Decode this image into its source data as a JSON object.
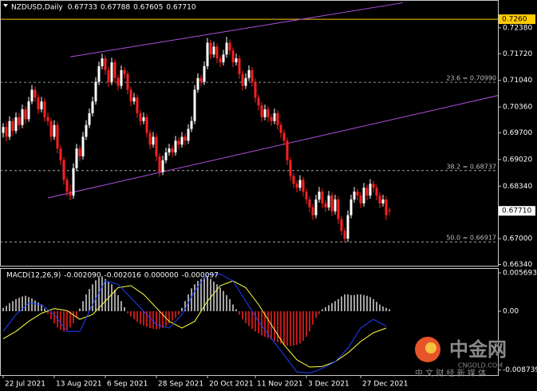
{
  "chart_data": {
    "type": "candlestick",
    "title": "NZDUSD,Daily",
    "header_values": [
      0.67733,
      0.67788,
      0.67605,
      {
        "value": 0.6771,
        "label": "0.67710"
      }
    ],
    "up_color": "#ffffff",
    "down_color": "#ff2020",
    "xlim": [
      -1,
      155
    ],
    "xticks": [
      {
        "value": 0,
        "label": "22 Jul 2021"
      },
      {
        "value": 16,
        "label": "13 Aug 2021"
      },
      {
        "value": 32,
        "label": "6 Sep 2021"
      },
      {
        "value": 48,
        "label": "28 Sep 2021"
      },
      {
        "value": 64,
        "label": "20 Oct 2021"
      },
      {
        "value": 79,
        "label": "11 Nov 2021"
      },
      {
        "value": 95,
        "label": "3 Dec 2021"
      },
      {
        "value": 112,
        "label": "27 Dec 2021"
      }
    ],
    "ylim": [
      0.6631,
      0.7309
    ],
    "yticks": [
      {
        "value": 0.7238,
        "label": "0.72380"
      },
      {
        "value": 0.7172,
        "label": "0.71720"
      },
      {
        "value": 0.7104,
        "label": "0.71040"
      },
      {
        "value": 0.7036,
        "label": "0.70360"
      },
      {
        "value": 0.697,
        "label": "0.69700"
      },
      {
        "value": 0.6902,
        "label": "0.69020"
      },
      {
        "value": 0.6834,
        "label": "0.68340"
      },
      {
        "value": 0.67,
        "label": "0.67000"
      },
      {
        "value": 0.6634,
        "label": "0.66340"
      }
    ],
    "hline": {
      "value": 0.726,
      "label": "0.7260",
      "color": "#ffcc00"
    },
    "fib_color": "#bdbdbd",
    "fib_levels": [
      {
        "value": 0.7099,
        "label": "23.6 = 0.70990"
      },
      {
        "value": 0.68737,
        "label": "38.2 = 0.68737"
      },
      {
        "value": 0.66917,
        "label": "50.0 = 0.66917"
      }
    ],
    "last_price": {
      "value": 0.6771,
      "label": "0.67710"
    },
    "trendline_color": "#b050e0",
    "trendlines": [
      {
        "x": [
          21,
          125.25
        ],
        "y": [
          0.7164,
          0.7302
        ]
      },
      {
        "x": [
          14,
          167.25
        ],
        "y": [
          0.6804,
          0.7088
        ]
      }
    ],
    "candles": [
      [
        0.697,
        0.6995,
        0.6958,
        0.6985
      ],
      [
        0.6985,
        0.6997,
        0.6948,
        0.696
      ],
      [
        0.696,
        0.7012,
        0.6952,
        0.7
      ],
      [
        0.7,
        0.7008,
        0.6963,
        0.6975
      ],
      [
        0.6975,
        0.7022,
        0.6968,
        0.701
      ],
      [
        0.701,
        0.7021,
        0.6978,
        0.699
      ],
      [
        0.699,
        0.7042,
        0.6982,
        0.703
      ],
      [
        0.703,
        0.7038,
        0.6993,
        0.7005
      ],
      [
        0.7005,
        0.7062,
        0.6998,
        0.705
      ],
      [
        0.705,
        0.7092,
        0.7043,
        0.708
      ],
      [
        0.708,
        0.7088,
        0.7048,
        0.706
      ],
      [
        0.706,
        0.7068,
        0.7018,
        0.703
      ],
      [
        0.703,
        0.7062,
        0.7022,
        0.705
      ],
      [
        0.705,
        0.7058,
        0.6998,
        0.701
      ],
      [
        0.701,
        0.7022,
        0.6988,
        0.7
      ],
      [
        0.7,
        0.7008,
        0.6948,
        0.696
      ],
      [
        0.696,
        0.7002,
        0.6952,
        0.699
      ],
      [
        0.699,
        0.6998,
        0.6918,
        0.693
      ],
      [
        0.693,
        0.6938,
        0.6888,
        0.69
      ],
      [
        0.69,
        0.6908,
        0.6838,
        0.685
      ],
      [
        0.685,
        0.6858,
        0.6808,
        0.682
      ],
      [
        0.682,
        0.6838,
        0.6798,
        0.681
      ],
      [
        0.681,
        0.6892,
        0.6802,
        0.688
      ],
      [
        0.688,
        0.6942,
        0.6872,
        0.693
      ],
      [
        0.693,
        0.6938,
        0.6898,
        0.691
      ],
      [
        0.691,
        0.6972,
        0.6902,
        0.696
      ],
      [
        0.696,
        0.7002,
        0.6952,
        0.699
      ],
      [
        0.699,
        0.7032,
        0.6982,
        0.702
      ],
      [
        0.702,
        0.7062,
        0.7012,
        0.705
      ],
      [
        0.705,
        0.7112,
        0.7042,
        0.71
      ],
      [
        0.71,
        0.7152,
        0.7092,
        0.714
      ],
      [
        0.714,
        0.7172,
        0.7132,
        0.716
      ],
      [
        0.716,
        0.7168,
        0.7118,
        0.713
      ],
      [
        0.713,
        0.7138,
        0.7088,
        0.71
      ],
      [
        0.71,
        0.7162,
        0.7092,
        0.715
      ],
      [
        0.715,
        0.7158,
        0.7098,
        0.711
      ],
      [
        0.711,
        0.7118,
        0.7078,
        0.709
      ],
      [
        0.709,
        0.7142,
        0.7082,
        0.713
      ],
      [
        0.713,
        0.7138,
        0.7108,
        0.712
      ],
      [
        0.712,
        0.7128,
        0.7068,
        0.708
      ],
      [
        0.708,
        0.7088,
        0.7038,
        0.705
      ],
      [
        0.705,
        0.7072,
        0.7042,
        0.706
      ],
      [
        0.706,
        0.7068,
        0.7008,
        0.702
      ],
      [
        0.702,
        0.7028,
        0.6988,
        0.7
      ],
      [
        0.7,
        0.7022,
        0.6992,
        0.701
      ],
      [
        0.701,
        0.7018,
        0.6958,
        0.697
      ],
      [
        0.697,
        0.6978,
        0.6928,
        0.694
      ],
      [
        0.694,
        0.6972,
        0.6932,
        0.696
      ],
      [
        0.696,
        0.6968,
        0.6898,
        0.691
      ],
      [
        0.691,
        0.6918,
        0.6858,
        0.687
      ],
      [
        0.687,
        0.6912,
        0.6862,
        0.69
      ],
      [
        0.69,
        0.6932,
        0.6892,
        0.692
      ],
      [
        0.692,
        0.6942,
        0.6912,
        0.693
      ],
      [
        0.693,
        0.6938,
        0.6908,
        0.692
      ],
      [
        0.692,
        0.6962,
        0.6912,
        0.695
      ],
      [
        0.695,
        0.6958,
        0.6928,
        0.694
      ],
      [
        0.694,
        0.6972,
        0.6932,
        0.696
      ],
      [
        0.696,
        0.6968,
        0.6938,
        0.695
      ],
      [
        0.695,
        0.6992,
        0.6942,
        0.698
      ],
      [
        0.698,
        0.7012,
        0.6972,
        0.7
      ],
      [
        0.7,
        0.7092,
        0.6992,
        0.708
      ],
      [
        0.708,
        0.7122,
        0.7072,
        0.711
      ],
      [
        0.711,
        0.7118,
        0.7088,
        0.71
      ],
      [
        0.71,
        0.7152,
        0.7092,
        0.714
      ],
      [
        0.714,
        0.7212,
        0.7132,
        0.72
      ],
      [
        0.72,
        0.7208,
        0.7158,
        0.717
      ],
      [
        0.717,
        0.7202,
        0.7162,
        0.719
      ],
      [
        0.719,
        0.7198,
        0.7148,
        0.716
      ],
      [
        0.716,
        0.7168,
        0.7138,
        0.715
      ],
      [
        0.715,
        0.7182,
        0.7142,
        0.717
      ],
      [
        0.717,
        0.7215,
        0.7162,
        0.72
      ],
      [
        0.72,
        0.7208,
        0.7168,
        0.718
      ],
      [
        0.718,
        0.7188,
        0.7138,
        0.715
      ],
      [
        0.715,
        0.7172,
        0.7142,
        0.716
      ],
      [
        0.716,
        0.7168,
        0.7108,
        0.712
      ],
      [
        0.712,
        0.7128,
        0.7078,
        0.709
      ],
      [
        0.709,
        0.7122,
        0.7082,
        0.711
      ],
      [
        0.711,
        0.7142,
        0.7102,
        0.713
      ],
      [
        0.713,
        0.7138,
        0.7088,
        0.71
      ],
      [
        0.71,
        0.7108,
        0.7048,
        0.706
      ],
      [
        0.706,
        0.7068,
        0.7028,
        0.704
      ],
      [
        0.704,
        0.7048,
        0.6998,
        0.701
      ],
      [
        0.701,
        0.7042,
        0.7002,
        0.703
      ],
      [
        0.703,
        0.7038,
        0.6998,
        0.701
      ],
      [
        0.701,
        0.7018,
        0.6988,
        0.7
      ],
      [
        0.7,
        0.7032,
        0.6992,
        0.702
      ],
      [
        0.702,
        0.7028,
        0.6978,
        0.699
      ],
      [
        0.699,
        0.6998,
        0.6958,
        0.697
      ],
      [
        0.697,
        0.6978,
        0.6938,
        0.695
      ],
      [
        0.695,
        0.6958,
        0.6888,
        0.69
      ],
      [
        0.69,
        0.6908,
        0.6848,
        0.686
      ],
      [
        0.686,
        0.6868,
        0.6828,
        0.684
      ],
      [
        0.684,
        0.6848,
        0.6818,
        0.683
      ],
      [
        0.683,
        0.6862,
        0.6822,
        0.685
      ],
      [
        0.685,
        0.6858,
        0.6808,
        0.682
      ],
      [
        0.682,
        0.6828,
        0.6788,
        0.68
      ],
      [
        0.68,
        0.6808,
        0.6768,
        0.678
      ],
      [
        0.678,
        0.6788,
        0.6748,
        0.676
      ],
      [
        0.676,
        0.6812,
        0.6752,
        0.68
      ],
      [
        0.68,
        0.6832,
        0.6792,
        0.682
      ],
      [
        0.682,
        0.6828,
        0.6778,
        0.679
      ],
      [
        0.679,
        0.6798,
        0.6768,
        0.678
      ],
      [
        0.678,
        0.6822,
        0.6772,
        0.681
      ],
      [
        0.681,
        0.6818,
        0.6758,
        0.677
      ],
      [
        0.677,
        0.6812,
        0.6762,
        0.68
      ],
      [
        0.68,
        0.6808,
        0.6738,
        0.675
      ],
      [
        0.675,
        0.6758,
        0.6708,
        0.672
      ],
      [
        0.672,
        0.6728,
        0.669,
        0.67
      ],
      [
        0.67,
        0.6772,
        0.6692,
        0.676
      ],
      [
        0.676,
        0.6812,
        0.6752,
        0.68
      ],
      [
        0.68,
        0.6832,
        0.6792,
        0.682
      ],
      [
        0.682,
        0.6828,
        0.6798,
        0.681
      ],
      [
        0.681,
        0.6818,
        0.6778,
        0.679
      ],
      [
        0.679,
        0.6842,
        0.6782,
        0.683
      ],
      [
        0.683,
        0.6838,
        0.6798,
        0.681
      ],
      [
        0.681,
        0.6852,
        0.6802,
        0.684
      ],
      [
        0.684,
        0.6848,
        0.6818,
        0.683
      ],
      [
        0.683,
        0.6838,
        0.6798,
        0.681
      ],
      [
        0.681,
        0.6818,
        0.6778,
        0.679
      ],
      [
        0.679,
        0.6812,
        0.6782,
        0.68
      ],
      [
        0.68,
        0.6808,
        0.6748,
        0.676
      ],
      [
        0.67733,
        0.67788,
        0.67605,
        0.6771
      ]
    ],
    "macd": {
      "title": "MACD(12,26,9)",
      "title_values": [
        {
          "value": -0.00209,
          "label": "-0.002090"
        },
        -0.002016,
        {
          "value": 0,
          "label": "0.000000"
        },
        -9.7e-05
      ],
      "ylim": [
        -0.00948,
        0.006286
      ],
      "yticks": [
        0.005693,
        {
          "value": 0,
          "label": "0.00"
        },
        -0.008739
      ],
      "up_color": "#d8d8d8",
      "down_color": "#ff2020",
      "histogram": [
        0.0005,
        0.0008,
        0.0012,
        0.0015,
        0.0018,
        0.002,
        0.0022,
        0.0023,
        0.0021,
        0.0019,
        0.0016,
        0.0013,
        0.0009,
        0.0004,
        -0.0004,
        -0.0012,
        -0.0018,
        -0.0024,
        -0.0028,
        -0.003,
        -0.0028,
        -0.0024,
        -0.0018,
        -0.001,
        0.0004,
        0.0015,
        0.0025,
        0.0033,
        0.004,
        0.0046,
        0.005,
        0.0052,
        0.0048,
        0.0044,
        0.004,
        0.0032,
        0.0024,
        0.0015,
        0.0006,
        -0.0003,
        -0.0008,
        -0.0012,
        -0.0016,
        -0.0019,
        -0.0021,
        -0.0023,
        -0.0025,
        -0.0026,
        -0.0027,
        -0.0026,
        -0.0025,
        -0.0022,
        -0.0018,
        -0.0014,
        -0.001,
        -0.0005,
        0.0005,
        0.0015,
        0.0025,
        0.0034,
        0.004,
        0.0045,
        0.0048,
        0.005,
        0.0052,
        0.0048,
        0.0044,
        0.004,
        0.0035,
        0.003,
        0.0024,
        0.0018,
        0.001,
        0.0003,
        -0.0005,
        -0.0012,
        -0.0018,
        -0.0022,
        -0.0026,
        -0.003,
        -0.0033,
        -0.0036,
        -0.0038,
        -0.004,
        -0.0042,
        -0.0044,
        -0.0046,
        -0.0048,
        -0.005,
        -0.0051,
        -0.0052,
        -0.0051,
        -0.005,
        -0.0048,
        -0.0044,
        -0.0038,
        -0.003,
        -0.002,
        -0.001,
        -0.0004,
        0.0003,
        0.0006,
        0.0009,
        0.0012,
        0.0015,
        0.0018,
        0.0022,
        0.0025,
        0.0025,
        0.0024,
        0.0024,
        0.0025,
        0.0025,
        0.0024,
        0.0023,
        0.0021,
        0.0018,
        0.0014,
        0.001,
        0.0007,
        0.0005,
        0.0003
      ],
      "lines": [
        {
          "color": "#ffff40",
          "x": [
            0,
            4,
            8,
            12,
            16,
            20,
            24,
            28,
            32,
            36,
            40,
            44,
            48,
            52,
            56,
            60,
            64,
            68,
            72,
            76,
            80,
            84,
            88,
            92,
            96,
            100,
            104,
            108,
            112,
            116,
            120
          ],
          "values": [
            -0.0041,
            -0.003,
            -0.0015,
            -0.0003,
            0.0004,
            0.0001,
            -0.0012,
            -0.0005,
            0.0015,
            0.0035,
            0.0038,
            0.0025,
            0.0005,
            -0.0015,
            -0.0025,
            -0.0015,
            0.0015,
            0.0038,
            0.0045,
            0.0035,
            0.001,
            -0.002,
            -0.005,
            -0.0072,
            -0.0083,
            -0.0082,
            -0.0075,
            -0.0062,
            -0.0045,
            -0.0032,
            -0.0025
          ]
        },
        {
          "color": "#2040ff",
          "x": [
            0,
            4,
            8,
            12,
            16,
            20,
            24,
            28,
            32,
            36,
            40,
            44,
            48,
            52,
            56,
            60,
            64,
            68,
            72,
            76,
            80,
            84,
            88,
            92,
            96,
            100,
            104,
            108,
            112,
            116,
            120
          ],
          "values": [
            -0.003,
            -0.0005,
            0.0012,
            0.001,
            -0.0005,
            -0.003,
            -0.003,
            0.001,
            0.0045,
            0.004,
            0.002,
            0,
            -0.002,
            -0.0025,
            -0.0005,
            0.003,
            0.0055,
            0.0055,
            0.0045,
            0.0015,
            -0.0015,
            -0.004,
            -0.0065,
            -0.009,
            -0.0092,
            -0.0085,
            -0.0075,
            -0.0055,
            -0.0025,
            -0.0012,
            -0.0022
          ]
        }
      ]
    }
  },
  "watermark": {
    "brand": "中金网",
    "site": "CNGOLD.COM",
    "slogan": "中 文 财 经 新 媒 体"
  }
}
